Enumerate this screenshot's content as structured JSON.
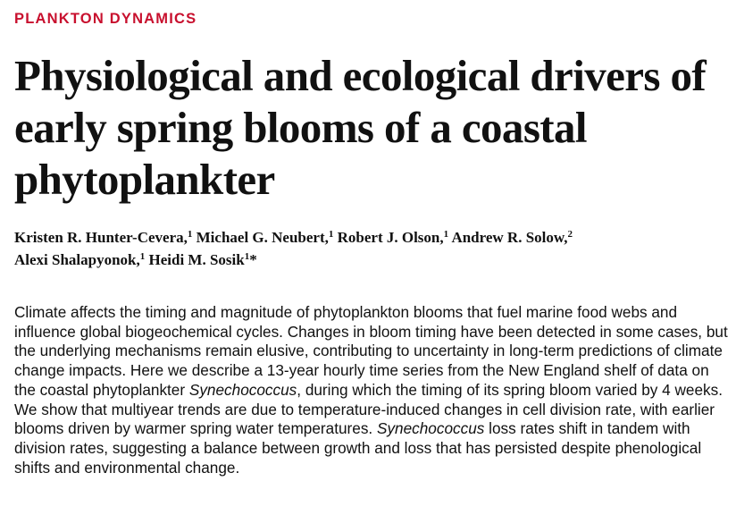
{
  "section_label": "PLANKTON DYNAMICS",
  "title": "Physiological and ecological drivers of early spring blooms of a coastal phytoplankter",
  "authors": [
    {
      "name": "Kristen R. Hunter-Cevera,",
      "affiliation": "1",
      "suffix": ""
    },
    {
      "name": "Michael G. Neubert,",
      "affiliation": "1",
      "suffix": ""
    },
    {
      "name": "Robert J. Olson,",
      "affiliation": "1",
      "suffix": ""
    },
    {
      "name": "Andrew R. Solow,",
      "affiliation": "2",
      "suffix": ""
    },
    {
      "name": "Alexi Shalapyonok,",
      "affiliation": "1",
      "suffix": ""
    },
    {
      "name": "Heidi M. Sosik",
      "affiliation": "1",
      "suffix": "*"
    }
  ],
  "abstract": {
    "part1": "Climate affects the timing and magnitude of phytoplankton blooms that fuel marine food webs and influence global biogeochemical cycles. Changes in bloom timing have been detected in some cases, but the underlying mechanisms remain elusive, contributing to uncertainty in long-term predictions of climate change impacts. Here we describe a 13-year hourly time series from the New England shelf of data on the coastal phytoplankter ",
    "species1": "Synechococcus",
    "part2": ", during which the timing of its spring bloom varied by 4 weeks. We show that multiyear trends are due to temperature-induced changes in cell division rate, with earlier blooms driven by warmer spring water temperatures. ",
    "species2": "Synechococcus",
    "part3": " loss rates shift in tandem with division rates, suggesting a balance between growth and loss that has persisted despite phenological shifts and environmental change."
  },
  "colors": {
    "section_label": "#c8102e",
    "text": "#111111"
  }
}
